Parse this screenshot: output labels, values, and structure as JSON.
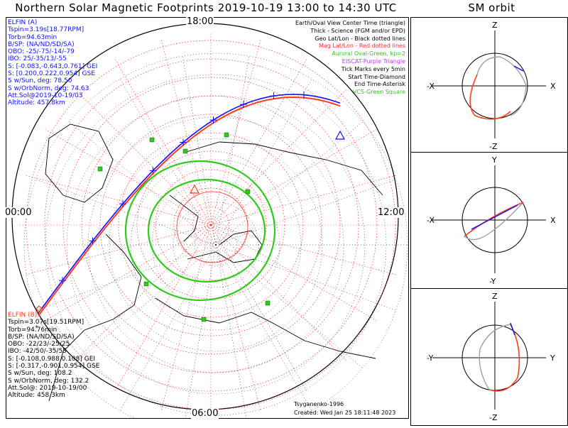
{
  "title": "Northern Solar Magnetic Footprints 2019-10-19 13:00 to 14:30 UTC",
  "orbit_title": "SM orbit",
  "time_labels": {
    "top": "18:00",
    "left": "00:00",
    "right": "12:00",
    "bottom": "06:00"
  },
  "legend": [
    {
      "text": "Earth/Oval View Center Time (triangle)",
      "color": "#000000"
    },
    {
      "text": "Thick - Science (FGM and/or EPD)",
      "color": "#000000"
    },
    {
      "text": "Geo Lat/Lon - Black dotted lines",
      "color": "#000000"
    },
    {
      "text": "Mag Lat/Lon - Red dotted lines",
      "color": "#ff2a2a"
    },
    {
      "text": "Auroral Oval-Green, kp=2",
      "color": "#2ecc1a"
    },
    {
      "text": "EISCAT-Purple Triangle",
      "color": "#cc33ff"
    },
    {
      "text": "Tick Marks every 5min",
      "color": "#000000"
    },
    {
      "text": "Start Time-Diamond",
      "color": "#000000"
    },
    {
      "text": "End Time-Asterisk",
      "color": "#000000"
    },
    {
      "text": "VCS-Green Square",
      "color": "#2ecc1a"
    }
  ],
  "elfin_a": {
    "lines": [
      "ELFIN (A)",
      "Tspin=3.19s[18.77RPM]",
      "Torb=94.63min",
      "B/SP: (NA/ND/SD/SA)",
      "OBO: -25/-75/-14/-79",
      "IBO: 25/-35/13/-55",
      "S: [-0.083,-0.643,0.761] GEI",
      "S: [0.200,0.222,0.954] GSE",
      "S w/Sun, deg: 78.50",
      "S w/OrbNorm, deg: 74.63",
      "Att.Sol@2019-10-19/03",
      "Altitude: 457.8km"
    ],
    "color": "#1010ff"
  },
  "elfin_b": {
    "lines": [
      "ELFIN (B)",
      "Tspin=3.07s[19.51RPM]",
      "Torb=94.76min",
      "B/SP: (NA/ND/SD/SA)",
      "OBO: -22/23/-25/25",
      "IBO: -42/50/-35/55",
      "S: [-0.108,0.988,0.108] GEI",
      "S: [-0.317,-0.901,0.954] GSE",
      "S w/Sun, deg: 108.2",
      "S w/OrbNorm, deg: 132.2",
      "Att.Sol@: 2019-10-19/00",
      "Altitude: 458.3km"
    ],
    "color": "#ff3c1e"
  },
  "credit": "Tsyganenko-1996",
  "created": "Created: Wed Jan 25 18:11:48 2023",
  "panels": [
    {
      "top": "Z",
      "bottom": "-Z",
      "left": "-X",
      "right": "X"
    },
    {
      "top": "Y",
      "bottom": "-Y",
      "left": "-X",
      "right": "X"
    },
    {
      "top": "Z",
      "bottom": "-Z",
      "left": "-Y",
      "right": "Y"
    }
  ],
  "colors": {
    "probe_a": "#1010ff",
    "probe_b": "#ff3c1e",
    "auroral_oval": "#2ecc1a",
    "mag_grid": "#ff2a2a",
    "geo_grid": "#000000",
    "model_orbit": "#a0a0a0"
  }
}
